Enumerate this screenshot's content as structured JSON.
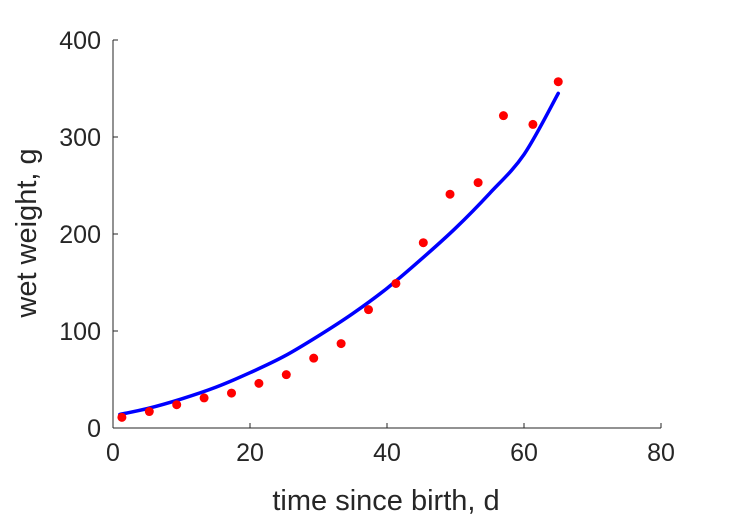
{
  "chart_data": {
    "type": "scatter",
    "title": "",
    "xlabel": "time since birth, d",
    "ylabel": "wet weight, g",
    "xlim": [
      0,
      80
    ],
    "ylim": [
      0,
      400
    ],
    "xticks": [
      0,
      20,
      40,
      60,
      80
    ],
    "yticks": [
      0,
      100,
      200,
      300,
      400
    ],
    "grid": false,
    "series": [
      {
        "kind": "points",
        "color": "#ff0000",
        "x": [
          1.3,
          5.3,
          9.3,
          13.3,
          17.3,
          21.3,
          25.3,
          29.3,
          33.3,
          37.3,
          41.3,
          45.3,
          49.2,
          53.3,
          57.0,
          61.3,
          65.0
        ],
        "y": [
          11,
          17,
          24,
          31,
          36,
          46,
          55,
          72,
          87,
          122,
          149,
          191,
          241,
          253,
          322,
          313,
          357
        ]
      },
      {
        "kind": "line",
        "color": "#0000ff",
        "x": [
          1,
          5,
          10,
          15,
          20,
          25,
          30,
          35,
          40,
          45,
          50,
          55,
          60,
          65
        ],
        "y": [
          14,
          20,
          30,
          42,
          57,
          74,
          95,
          118,
          144,
          174,
          206,
          242,
          282,
          345
        ]
      }
    ]
  }
}
